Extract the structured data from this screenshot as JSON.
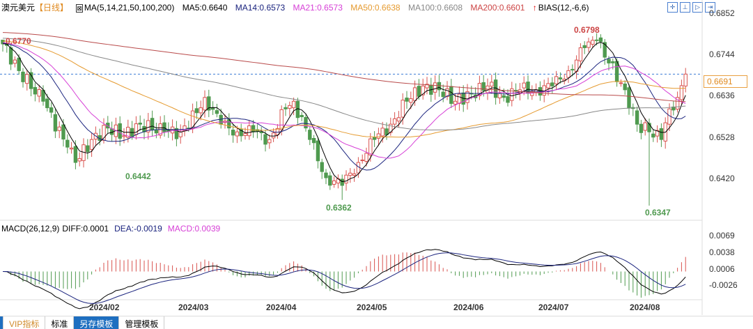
{
  "header": {
    "symbol": "澳元美元",
    "period": "【日线】",
    "ma_label": "MA(5,14,21,50,100,200)",
    "ma5": "MA5:0.6640",
    "ma14": "MA14:0.6573",
    "ma21": "MA21:0.6573",
    "ma50": "MA50:0.6638",
    "ma100": "MA100:0.6608",
    "ma200": "MA200:0.6601",
    "bias": "BIAS(12,-6,6)"
  },
  "macd_header": {
    "label": "MACD(26,12,9)",
    "diff": "DIFF:0.0001",
    "dea": "DEA:-0.0019",
    "macd": "MACD:0.0039"
  },
  "tabs": [
    "VIP指标",
    "标准",
    "另存模板",
    "管理模板"
  ],
  "colors": {
    "up": "#d9534f",
    "down": "#4f9a4f",
    "ma5": "#000000",
    "ma14": "#1a237e",
    "ma21": "#d63fd6",
    "ma50": "#e59a2f",
    "ma100": "#888888",
    "ma200": "#b94a4a"
  },
  "chart_data": {
    "type": "candlestick",
    "price_axis_ticks": [
      "0.6852",
      "0.6744",
      "0.6636",
      "0.6528",
      "0.6420"
    ],
    "price_range": [
      0.6336,
      0.6852
    ],
    "current_price": "0.6691",
    "macd_axis_ticks": [
      "0.0069",
      "0.0038",
      "0.0006",
      "-0.0026"
    ],
    "x_ticks": [
      "2024/02",
      "2024/03",
      "2024/04",
      "2024/05",
      "2024/06",
      "2024/07",
      "2024/08"
    ],
    "annotations": {
      "start": "0.6770",
      "low1": "0.6442",
      "low2": "0.6362",
      "high": "0.6798",
      "low3": "0.6347"
    },
    "close_keypoints": [
      [
        0,
        0.677
      ],
      [
        4,
        0.67
      ],
      [
        10,
        0.662
      ],
      [
        16,
        0.65
      ],
      [
        18,
        0.646
      ],
      [
        22,
        0.652
      ],
      [
        26,
        0.655
      ],
      [
        30,
        0.653
      ],
      [
        34,
        0.656
      ],
      [
        40,
        0.654
      ],
      [
        44,
        0.654
      ],
      [
        48,
        0.659
      ],
      [
        50,
        0.663
      ],
      [
        54,
        0.656
      ],
      [
        58,
        0.654
      ],
      [
        62,
        0.654
      ],
      [
        66,
        0.652
      ],
      [
        70,
        0.66
      ],
      [
        72,
        0.662
      ],
      [
        76,
        0.652
      ],
      [
        80,
        0.642
      ],
      [
        84,
        0.64
      ],
      [
        88,
        0.646
      ],
      [
        92,
        0.652
      ],
      [
        96,
        0.656
      ],
      [
        100,
        0.662
      ],
      [
        104,
        0.666
      ],
      [
        108,
        0.665
      ],
      [
        112,
        0.662
      ],
      [
        116,
        0.664
      ],
      [
        120,
        0.666
      ],
      [
        124,
        0.663
      ],
      [
        128,
        0.665
      ],
      [
        132,
        0.665
      ],
      [
        136,
        0.666
      ],
      [
        140,
        0.67
      ],
      [
        144,
        0.676
      ],
      [
        147,
        0.678
      ],
      [
        150,
        0.672
      ],
      [
        154,
        0.665
      ],
      [
        157,
        0.656
      ],
      [
        160,
        0.654
      ],
      [
        163,
        0.652
      ],
      [
        165,
        0.66
      ],
      [
        167,
        0.663
      ],
      [
        169,
        0.6691
      ]
    ]
  }
}
